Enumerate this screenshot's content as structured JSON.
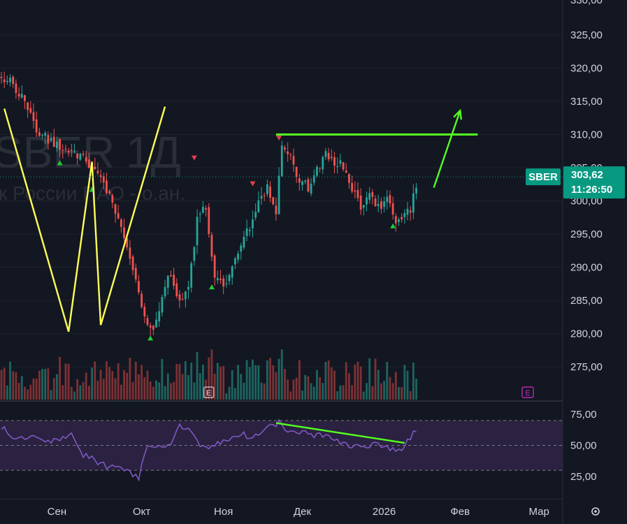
{
  "chart_data": {
    "type": "candlestick",
    "symbol": "SBER",
    "interval": "1Д",
    "company_name": "к России ПАО - о.ан.",
    "last_price": "303,62",
    "countdown": "11:26:50",
    "price_axis": {
      "ticks": [
        "325,00",
        "320,00",
        "315,00",
        "310,00",
        "305,00",
        "300,00",
        "295,00",
        "290,00",
        "285,00",
        "280,00",
        "275,00"
      ],
      "range": [
        270.5,
        330
      ]
    },
    "rsi_axis": {
      "ticks": [
        "75,00",
        "50,00",
        "25,00"
      ],
      "bands": [
        70,
        30
      ]
    },
    "time_axis": {
      "labels": [
        "Сен",
        "Окт",
        "Ноя",
        "Дек",
        "2026",
        "Фев",
        "Мар"
      ]
    },
    "price_anchors": [
      [
        0,
        319
      ],
      [
        5,
        317
      ],
      [
        9,
        314
      ],
      [
        13,
        310
      ],
      [
        17,
        309
      ],
      [
        22,
        308
      ],
      [
        27,
        307
      ],
      [
        31,
        305
      ],
      [
        35,
        303
      ],
      [
        39,
        298
      ],
      [
        43,
        293
      ],
      [
        46,
        288
      ],
      [
        49,
        283
      ],
      [
        52,
        280
      ],
      [
        55,
        286
      ],
      [
        58,
        289
      ],
      [
        61,
        285
      ],
      [
        64,
        287
      ],
      [
        67,
        297
      ],
      [
        70,
        299
      ],
      [
        73,
        289
      ],
      [
        76,
        287
      ],
      [
        79,
        290
      ],
      [
        82,
        294
      ],
      [
        85,
        296
      ],
      [
        88,
        300
      ],
      [
        91,
        302
      ],
      [
        94,
        298
      ],
      [
        96,
        309
      ],
      [
        99,
        307
      ],
      [
        102,
        303
      ],
      [
        105,
        302
      ],
      [
        108,
        305
      ],
      [
        111,
        307
      ],
      [
        114,
        306
      ],
      [
        117,
        305
      ],
      [
        120,
        302
      ],
      [
        123,
        299
      ],
      [
        126,
        301
      ],
      [
        129,
        299
      ],
      [
        132,
        300
      ],
      [
        135,
        297
      ],
      [
        138,
        298
      ],
      [
        140,
        299
      ],
      [
        142,
        302
      ]
    ],
    "rsi_anchors": [
      [
        0,
        65
      ],
      [
        5,
        55
      ],
      [
        10,
        58
      ],
      [
        15,
        52
      ],
      [
        20,
        54
      ],
      [
        24,
        60
      ],
      [
        28,
        42
      ],
      [
        32,
        38
      ],
      [
        36,
        33
      ],
      [
        40,
        31
      ],
      [
        44,
        28
      ],
      [
        47,
        24
      ],
      [
        50,
        50
      ],
      [
        54,
        48
      ],
      [
        58,
        52
      ],
      [
        61,
        66
      ],
      [
        64,
        65
      ],
      [
        67,
        52
      ],
      [
        70,
        48
      ],
      [
        73,
        51
      ],
      [
        76,
        54
      ],
      [
        79,
        57
      ],
      [
        82,
        60
      ],
      [
        85,
        56
      ],
      [
        89,
        62
      ],
      [
        92,
        66
      ],
      [
        95,
        68
      ],
      [
        98,
        63
      ],
      [
        101,
        60
      ],
      [
        104,
        61
      ],
      [
        107,
        57
      ],
      [
        110,
        59
      ],
      [
        113,
        56
      ],
      [
        116,
        53
      ],
      [
        119,
        49
      ],
      [
        122,
        50
      ],
      [
        125,
        48
      ],
      [
        128,
        52
      ],
      [
        131,
        50
      ],
      [
        134,
        46
      ],
      [
        137,
        47
      ],
      [
        139,
        54
      ],
      [
        142,
        62
      ]
    ],
    "markers": {
      "buy": [
        [
          20,
          306
        ],
        [
          31,
          302
        ],
        [
          51,
          279.6
        ],
        [
          72,
          287.3
        ],
        [
          134,
          296.5
        ]
      ],
      "sell": [
        [
          66,
          306.2
        ],
        [
          86,
          302.3
        ],
        [
          95,
          309.2
        ]
      ],
      "earnings": [
        [
          71,
          "E"
        ]
      ]
    },
    "drawings": {
      "w_pattern": [
        [
          1,
          313.9
        ],
        [
          23,
          280.3
        ],
        [
          31,
          305.9
        ],
        [
          34,
          281.3
        ],
        [
          56,
          314.2
        ]
      ],
      "resistance": [
        [
          94,
          310
        ],
        [
          163,
          310
        ]
      ],
      "arrow": [
        [
          148,
          302
        ],
        [
          157,
          313.6
        ]
      ],
      "rsi_divergence": [
        [
          94,
          68
        ],
        [
          138,
          52
        ]
      ]
    },
    "colors": {
      "background": "#131722",
      "up": "#26a69a",
      "down": "#ef5350",
      "pattern": "#ffff55",
      "resistance": "#55ff22",
      "rsi_line": "#7e57c2",
      "rsi_band": "#2a2240",
      "price_badge": "#089981",
      "earnings": "#b52ab0"
    }
  }
}
